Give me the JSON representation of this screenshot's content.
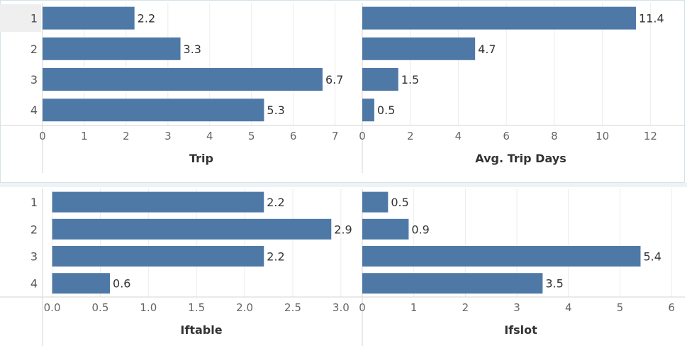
{
  "chart_data": [
    {
      "type": "bar",
      "orientation": "horizontal",
      "categories": [
        "1",
        "2",
        "3",
        "4"
      ],
      "values": [
        2.2,
        3.3,
        6.7,
        5.3
      ],
      "value_labels": [
        "2.2",
        "3.3",
        "6.7",
        "5.3"
      ],
      "xlabel": "Trip",
      "xlim": [
        0,
        7.6
      ],
      "ticks": [
        0,
        1,
        2,
        3,
        4,
        5,
        6,
        7
      ],
      "tick_labels": [
        "0",
        "1",
        "2",
        "3",
        "4",
        "5",
        "6",
        "7"
      ],
      "grid": true,
      "color": "#4e79a7"
    },
    {
      "type": "bar",
      "orientation": "horizontal",
      "categories": [
        "1",
        "2",
        "3",
        "4"
      ],
      "values": [
        11.4,
        4.7,
        1.5,
        0.5
      ],
      "value_labels": [
        "11.4",
        "4.7",
        "1.5",
        "0.5"
      ],
      "xlabel": "Avg. Trip Days",
      "xlim": [
        0,
        13.2
      ],
      "ticks": [
        0,
        2,
        4,
        6,
        8,
        10,
        12
      ],
      "tick_labels": [
        "0",
        "2",
        "4",
        "6",
        "8",
        "10",
        "12"
      ],
      "grid": true,
      "color": "#4e79a7"
    },
    {
      "type": "bar",
      "orientation": "horizontal",
      "categories": [
        "1",
        "2",
        "3",
        "4"
      ],
      "values": [
        2.2,
        2.9,
        2.2,
        0.6
      ],
      "value_labels": [
        "2.2",
        "2.9",
        "2.2",
        "0.6"
      ],
      "xlabel": "Iftable",
      "xlim": [
        -0.1,
        3.2
      ],
      "ticks": [
        0,
        0.5,
        1,
        1.5,
        2,
        2.5,
        3
      ],
      "tick_labels": [
        "0.0",
        "0.5",
        "1.0",
        "1.5",
        "2.0",
        "2.5",
        "3.0"
      ],
      "grid": true,
      "color": "#4e79a7"
    },
    {
      "type": "bar",
      "orientation": "horizontal",
      "categories": [
        "1",
        "2",
        "3",
        "4"
      ],
      "values": [
        0.5,
        0.9,
        5.4,
        3.5
      ],
      "value_labels": [
        "0.5",
        "0.9",
        "5.4",
        "3.5"
      ],
      "xlabel": "Ifslot",
      "xlim": [
        0,
        6.15
      ],
      "ticks": [
        0,
        1,
        2,
        3,
        4,
        5,
        6
      ],
      "tick_labels": [
        "0",
        "1",
        "2",
        "3",
        "4",
        "5",
        "6"
      ],
      "grid": true,
      "color": "#4e79a7"
    }
  ]
}
